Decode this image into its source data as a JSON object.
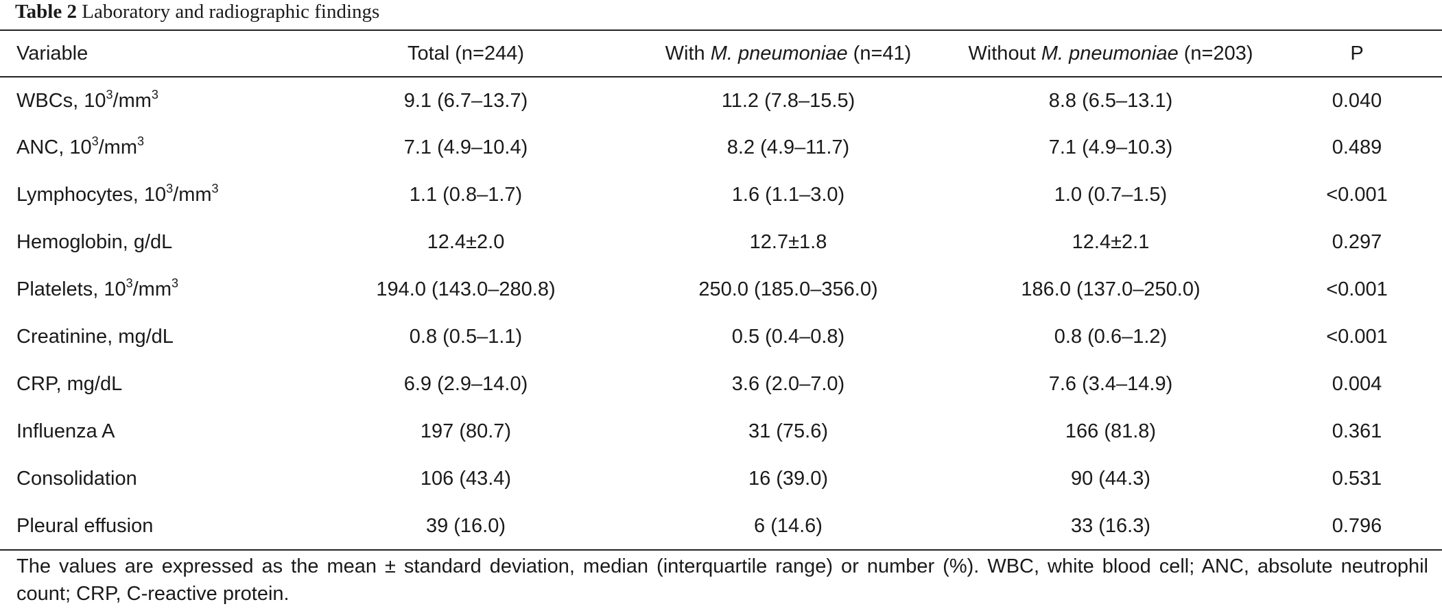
{
  "caption": {
    "label": "Table 2",
    "text": "Laboratory and radiographic findings"
  },
  "header": {
    "variable": "Variable",
    "total": "Total (n=244)",
    "with_pre": "With ",
    "with_italic": "M. pneumoniae",
    "with_post": " (n=41)",
    "without_pre": "Without ",
    "without_italic": "M. pneumoniae",
    "without_post": " (n=203)",
    "p": "P"
  },
  "rows": [
    {
      "label_pre": "WBCs, 10",
      "sup1": "3",
      "label_mid": "/mm",
      "sup2": "3",
      "total": "9.1 (6.7–13.7)",
      "with": "11.2 (7.8–15.5)",
      "without": "8.8 (6.5–13.1)",
      "p": "0.040"
    },
    {
      "label_pre": "ANC, 10",
      "sup1": "3",
      "label_mid": "/mm",
      "sup2": "3",
      "total": "7.1 (4.9–10.4)",
      "with": "8.2 (4.9–11.7)",
      "without": "7.1 (4.9–10.3)",
      "p": "0.489"
    },
    {
      "label_pre": "Lymphocytes, 10",
      "sup1": "3",
      "label_mid": "/mm",
      "sup2": "3",
      "total": "1.1 (0.8–1.7)",
      "with": "1.6 (1.1–3.0)",
      "without": "1.0 (0.7–1.5)",
      "p": "<0.001"
    },
    {
      "label": "Hemoglobin, g/dL",
      "total": "12.4±2.0",
      "with": "12.7±1.8",
      "without": "12.4±2.1",
      "p": "0.297"
    },
    {
      "label_pre": "Platelets, 10",
      "sup1": "3",
      "label_mid": "/mm",
      "sup2": "3",
      "total": "194.0 (143.0–280.8)",
      "with": "250.0 (185.0–356.0)",
      "without": "186.0 (137.0–250.0)",
      "p": "<0.001"
    },
    {
      "label": "Creatinine, mg/dL",
      "total": "0.8 (0.5–1.1)",
      "with": "0.5 (0.4–0.8)",
      "without": "0.8 (0.6–1.2)",
      "p": "<0.001"
    },
    {
      "label": "CRP, mg/dL",
      "total": "6.9 (2.9–14.0)",
      "with": "3.6 (2.0–7.0)",
      "without": "7.6 (3.4–14.9)",
      "p": "0.004"
    },
    {
      "label": "Influenza A",
      "total": "197 (80.7)",
      "with": "31 (75.6)",
      "without": "166 (81.8)",
      "p": "0.361"
    },
    {
      "label": "Consolidation",
      "total": "106 (43.4)",
      "with": "16 (39.0)",
      "without": "90 (44.3)",
      "p": "0.531"
    },
    {
      "label": "Pleural effusion",
      "total": "39 (16.0)",
      "with": "6 (14.6)",
      "without": "33 (16.3)",
      "p": "0.796"
    }
  ],
  "footnote": "The values are expressed as the mean ± standard deviation, median (interquartile range) or number (%). WBC, white blood cell; ANC, absolute neutrophil count; CRP, C-reactive protein."
}
